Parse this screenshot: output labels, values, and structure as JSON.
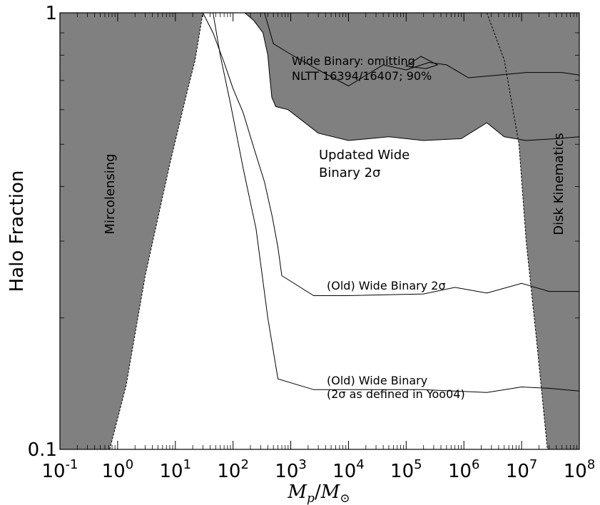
{
  "chart_data": {
    "type": "line",
    "xscale": "log",
    "yscale": "log",
    "xlim": [
      0.1,
      100000000
    ],
    "ylim": [
      0.1,
      1
    ],
    "xlabel": {
      "main": "M",
      "sub1": "p",
      "sep": "/",
      "main2": "M",
      "sub2": "⊙"
    },
    "ylabel": "Halo Fraction",
    "x_ticks": [
      {
        "value": 0.1,
        "base": "10",
        "exp": "-1"
      },
      {
        "value": 1,
        "base": "10",
        "exp": "0"
      },
      {
        "value": 10,
        "base": "10",
        "exp": "1"
      },
      {
        "value": 100,
        "base": "10",
        "exp": "2"
      },
      {
        "value": 1000,
        "base": "10",
        "exp": "3"
      },
      {
        "value": 10000,
        "base": "10",
        "exp": "4"
      },
      {
        "value": 100000,
        "base": "10",
        "exp": "5"
      },
      {
        "value": 1000000,
        "base": "10",
        "exp": "6"
      },
      {
        "value": 10000000,
        "base": "10",
        "exp": "7"
      },
      {
        "value": 100000000,
        "base": "10",
        "exp": "8"
      }
    ],
    "y_ticks": [
      {
        "value": 0.1,
        "label": "0.1"
      },
      {
        "value": 1,
        "label": "1"
      }
    ],
    "colors": {
      "excluded_fill": "#808080",
      "line": "#000000"
    },
    "regions": [
      {
        "label": "Mircolensing",
        "boundary": [
          [
            0.73,
            0.1
          ],
          [
            1.4,
            0.14
          ],
          [
            3.0,
            0.25
          ],
          [
            8.0,
            0.45
          ],
          [
            16,
            0.66
          ],
          [
            22,
            0.78
          ],
          [
            30,
            1.0
          ]
        ]
      },
      {
        "label": "Disk Kinematics",
        "boundary": [
          [
            2500000,
            1.0
          ],
          [
            5000000,
            0.78
          ],
          [
            9000000,
            0.5
          ],
          [
            12000000,
            0.3
          ],
          [
            18000000,
            0.18
          ],
          [
            28000000,
            0.1
          ]
        ]
      },
      {
        "label_lines": [
          "Updated Wide",
          "Binary 2σ"
        ],
        "boundary": [
          [
            160,
            1.0
          ],
          [
            230,
            0.96
          ],
          [
            330,
            0.9
          ],
          [
            400,
            0.8
          ],
          [
            430,
            0.72
          ],
          [
            470,
            0.64
          ],
          [
            550,
            0.61
          ],
          [
            900,
            0.6
          ],
          [
            3000,
            0.53
          ],
          [
            10000,
            0.51
          ],
          [
            50000,
            0.52
          ],
          [
            200000,
            0.51
          ],
          [
            900000,
            0.515
          ],
          [
            2500000,
            0.56
          ],
          [
            5000000,
            0.52
          ],
          [
            12000000,
            0.51
          ],
          [
            40000000,
            0.515
          ],
          [
            100000000,
            0.52
          ]
        ]
      }
    ],
    "series": [
      {
        "label_lines": [
          "Wide Binary: omitting",
          "NLTT 16394/16407; 90%"
        ],
        "x": [
          350,
          500,
          900,
          3000,
          10000,
          40000,
          100000,
          250000,
          500000,
          1200000,
          4000000,
          12000000,
          50000000,
          100000000
        ],
        "y": [
          1.0,
          0.85,
          0.81,
          0.74,
          0.68,
          0.76,
          0.74,
          0.77,
          0.76,
          0.71,
          0.72,
          0.73,
          0.73,
          0.72
        ],
        "closed_loop": [
          [
            100000,
            0.755
          ],
          [
            180000,
            0.795
          ],
          [
            350000,
            0.76
          ],
          [
            220000,
            0.745
          ],
          [
            100000,
            0.755
          ]
        ]
      },
      {
        "label": "(Old) Wide Binary 2σ",
        "x": [
          30,
          45,
          70,
          100,
          150,
          230,
          350,
          480,
          600,
          700,
          2500,
          10000,
          200000,
          700000,
          2500000,
          10000000,
          30000000,
          100000000
        ],
        "y": [
          1.0,
          0.9,
          0.77,
          0.67,
          0.59,
          0.49,
          0.41,
          0.34,
          0.29,
          0.25,
          0.225,
          0.225,
          0.227,
          0.235,
          0.228,
          0.24,
          0.23,
          0.23
        ]
      },
      {
        "label_lines": [
          "(Old) Wide Binary",
          "(2σ as defined in Yoo04)"
        ],
        "x": [
          45,
          60,
          90,
          150,
          250,
          400,
          600,
          2500,
          10000,
          200000,
          700000,
          2500000,
          10000000,
          30000000,
          100000000
        ],
        "y": [
          1.0,
          0.8,
          0.62,
          0.44,
          0.32,
          0.2,
          0.145,
          0.137,
          0.137,
          0.137,
          0.136,
          0.135,
          0.139,
          0.138,
          0.136
        ]
      }
    ]
  }
}
